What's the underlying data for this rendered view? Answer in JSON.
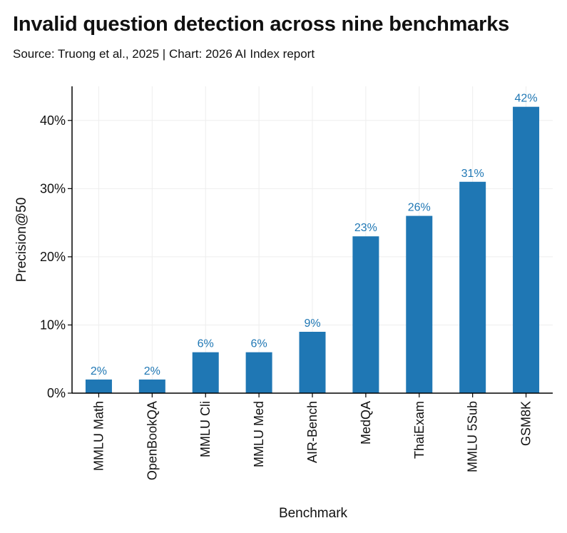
{
  "header": {
    "title": "Invalid question detection across nine benchmarks",
    "subtitle": "Source: Truong et al., 2025 | Chart: 2026 AI Index report"
  },
  "chart_data": {
    "type": "bar",
    "categories": [
      "MMLU Math",
      "OpenBookQA",
      "MMLU Cli",
      "MMLU Med",
      "AIR-Bench",
      "MedQA",
      "ThaiExam",
      "MMLU 5Sub",
      "GSM8K"
    ],
    "values": [
      2,
      2,
      6,
      6,
      9,
      23,
      26,
      31,
      42
    ],
    "data_labels": [
      "2%",
      "2%",
      "6%",
      "6%",
      "9%",
      "23%",
      "26%",
      "31%",
      "42%"
    ],
    "xlabel": "Benchmark",
    "ylabel": "Precision@50",
    "ylim": [
      0,
      45
    ],
    "yticks": [
      0,
      10,
      20,
      30,
      40
    ],
    "ytick_labels": [
      "0%",
      "10%",
      "20%",
      "30%",
      "40%"
    ],
    "grid": true,
    "colors": {
      "bar": "#1f77b4",
      "label": "#1f77b4",
      "grid": "#eeeeee",
      "axis": "#000000"
    }
  }
}
